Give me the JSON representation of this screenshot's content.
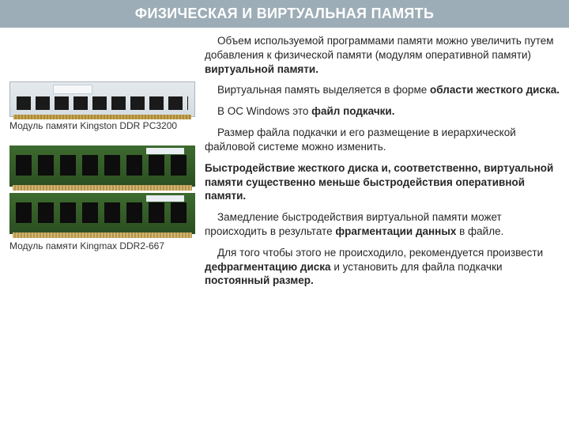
{
  "header": {
    "title": "ФИЗИЧЕСКАЯ И ВИРТУАЛЬНАЯ ПАМЯТЬ"
  },
  "left": {
    "caption1": "Модуль памяти Kingston DDR PC3200",
    "caption2": "Модуль памяти Kingmax DDR2-667"
  },
  "right": {
    "p1a": "Объем используемой программами памяти можно увеличить путем добавления к физической памяти (модулям оперативной памяти) ",
    "p1b": "виртуальной памяти.",
    "p2a": "Виртуальная память выделяется в форме ",
    "p2b": "области жесткого диска.",
    "p3a": "В ОС Windows это ",
    "p3b": "файл подкачки.",
    "p4": "Размер файла подкачки и его размещение в иерархической файловой системе можно изменить.",
    "p5": "Быстродействие жесткого диска и, соответственно, виртуальной памяти существенно меньше быстродействия оперативной памяти.",
    "p6a": "Замедление быстродействия виртуальной памяти может происходить в результате ",
    "p6b": "фрагментации данных",
    "p6c": " в файле.",
    "p7a": "Для того чтобы этого не происходило, рекомендуется произвести ",
    "p7b": "дефрагментацию диска",
    "p7c": " и установить для файла подкачки ",
    "p7d": "постоянный размер."
  },
  "style": {
    "header_bg": "#9dadb7",
    "header_color": "#ffffff",
    "text_color": "#262626",
    "ram1_bg": "#d5dde2",
    "ram2_bg": "#2b4e21"
  }
}
